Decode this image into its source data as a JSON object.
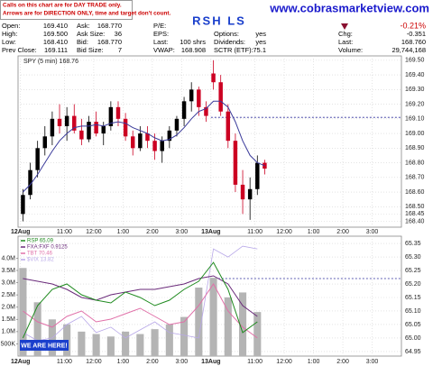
{
  "notice": [
    "Calls on this chart are for DAY TRADE only.",
    "Arrows are for DIRECTION ONLY, time and target don't count."
  ],
  "title": "RSH LS",
  "website": "www.cobrasmarketview.com",
  "quote": {
    "columns": [
      [
        {
          "label": "Open:",
          "value": "169.410"
        },
        {
          "label": "High:",
          "value": "169.500"
        },
        {
          "label": "Low:",
          "value": "168.410"
        },
        {
          "label": "Prev Close:",
          "value": "169.111"
        }
      ],
      [
        {
          "label": "Ask:",
          "value": "168.770"
        },
        {
          "label": "Ask Size:",
          "value": "36"
        },
        {
          "label": "Bid:",
          "value": "168.770"
        },
        {
          "label": "Bid Size:",
          "value": "7"
        }
      ],
      [
        {
          "label": "P/E:"
        },
        {
          "label": "EPS:"
        },
        {
          "label": "Last:",
          "value": "100 shrs"
        },
        {
          "label": "VWAP:",
          "value": "168.908"
        }
      ],
      [
        {
          "label": "Options:",
          "value": "yes"
        },
        {
          "label": "Dividends:",
          "value": "yes"
        },
        {
          "label": "SCTR (ETF):",
          "value": "75.1"
        }
      ],
      [
        {
          "value": "-0.21%",
          "color": "#cc0000"
        },
        {
          "label": "Chg:",
          "value": "-0.351"
        },
        {
          "label": "Last:",
          "value": "168.760"
        },
        {
          "label": "Volume:",
          "value": "29,744,168"
        }
      ]
    ]
  },
  "annotation": "WE ARE HERE!",
  "chart_data": [
    {
      "type": "candlestick",
      "name": "SPY (5 min) 168.76",
      "grid": true,
      "up_color": "#000000",
      "down_color": "#cc0022",
      "reference_line": 169.11,
      "xlim": [
        -1,
        156
      ],
      "xticks": [
        {
          "value": 0,
          "label": "12Aug"
        },
        {
          "value": 18,
          "label": "11:00"
        },
        {
          "value": 30,
          "label": "12:00"
        },
        {
          "value": 42,
          "label": "1:00"
        },
        {
          "value": 54,
          "label": "2:00"
        },
        {
          "value": 66,
          "label": "3:00"
        },
        {
          "value": 78,
          "label": "13Aug"
        },
        {
          "value": 96,
          "label": "11:00"
        },
        {
          "value": 108,
          "label": "12:00"
        },
        {
          "value": 120,
          "label": "1:00"
        },
        {
          "value": 132,
          "label": "2:00"
        },
        {
          "value": 144,
          "label": "3:00"
        }
      ],
      "ylim": [
        168.36,
        169.53
      ],
      "yticks": [
        {
          "value": 168.4,
          "label": "168.40"
        },
        168.45,
        {
          "value": 168.5,
          "label": "168.50"
        },
        {
          "value": 168.6,
          "label": "168.60"
        },
        {
          "value": 168.7,
          "label": "168.70"
        },
        {
          "value": 168.8,
          "label": "168.80"
        },
        {
          "value": 168.9,
          "label": "168.90"
        },
        {
          "value": 169.0,
          "label": "169.00"
        },
        {
          "value": 169.1,
          "label": "169.10"
        },
        {
          "value": 169.2,
          "label": "169.20"
        },
        {
          "value": 169.3,
          "label": "169.30"
        },
        {
          "value": 169.4,
          "label": "169.40"
        },
        {
          "value": 169.5,
          "label": "169.50"
        }
      ],
      "x": [
        1,
        4,
        7,
        10,
        13,
        16,
        19,
        22,
        25,
        28,
        31,
        34,
        37,
        40,
        43,
        46,
        49,
        52,
        55,
        58,
        61,
        64,
        67,
        70,
        73,
        76,
        79,
        82,
        85,
        88,
        91,
        94,
        97,
        100
      ],
      "open": [
        168.45,
        168.58,
        168.75,
        168.9,
        168.98,
        169.1,
        169.05,
        169.12,
        169.02,
        168.96,
        169.08,
        169.0,
        169.05,
        169.18,
        169.1,
        168.98,
        168.9,
        169.0,
        168.95,
        168.88,
        168.95,
        169.02,
        169.1,
        169.22,
        169.3,
        169.18,
        169.41,
        169.35,
        169.15,
        168.95,
        168.65,
        168.55,
        168.62,
        168.8
      ],
      "high": [
        168.62,
        168.8,
        168.95,
        169.05,
        169.15,
        169.2,
        169.18,
        169.2,
        169.1,
        169.12,
        169.15,
        169.08,
        169.22,
        169.22,
        169.14,
        169.02,
        169.05,
        169.05,
        169.0,
        168.98,
        169.05,
        169.12,
        169.25,
        169.35,
        169.32,
        169.22,
        169.5,
        169.4,
        169.2,
        169.0,
        168.75,
        168.7,
        168.85,
        168.82
      ],
      "low": [
        168.4,
        168.55,
        168.7,
        168.85,
        168.92,
        169.0,
        168.95,
        169.0,
        168.92,
        168.94,
        168.98,
        168.92,
        169.02,
        169.05,
        168.95,
        168.85,
        168.88,
        168.9,
        168.82,
        168.8,
        168.9,
        168.98,
        169.05,
        169.15,
        169.12,
        169.08,
        169.3,
        169.12,
        168.9,
        168.6,
        168.45,
        168.41,
        168.58,
        168.72
      ],
      "close": [
        168.58,
        168.75,
        168.9,
        168.98,
        169.1,
        169.05,
        169.12,
        169.02,
        168.96,
        169.08,
        169.0,
        169.05,
        169.18,
        169.1,
        168.98,
        168.9,
        169.0,
        168.95,
        168.88,
        168.95,
        169.02,
        169.1,
        169.22,
        169.3,
        169.18,
        169.12,
        169.35,
        169.15,
        168.95,
        168.65,
        168.55,
        168.62,
        168.8,
        168.76
      ],
      "ma": {
        "color": "#3a3a9a",
        "values": [
          168.6,
          168.65,
          168.72,
          168.8,
          168.88,
          168.95,
          169.0,
          169.04,
          169.05,
          169.05,
          169.06,
          169.05,
          169.07,
          169.08,
          169.07,
          169.04,
          169.02,
          169.0,
          168.97,
          168.95,
          168.96,
          168.99,
          169.04,
          169.1,
          169.15,
          169.17,
          169.22,
          169.22,
          169.18,
          169.08,
          168.95,
          168.85,
          168.8,
          168.78
        ]
      }
    },
    {
      "type": "line",
      "grid": true,
      "reference_line": 65.22,
      "xlim": [
        -1,
        156
      ],
      "xticks": [
        {
          "value": 0,
          "label": "12Aug"
        },
        {
          "value": 18,
          "label": "11:00"
        },
        {
          "value": 30,
          "label": "12:00"
        },
        {
          "value": 42,
          "label": "1:00"
        },
        {
          "value": 54,
          "label": "2:00"
        },
        {
          "value": 66,
          "label": "3:00"
        },
        {
          "value": 78,
          "label": "13Aug"
        },
        {
          "value": 96,
          "label": "11:00"
        },
        {
          "value": 108,
          "label": "12:00"
        },
        {
          "value": 120,
          "label": "1:00"
        },
        {
          "value": 132,
          "label": "2:00"
        },
        {
          "value": 144,
          "label": "3:00"
        }
      ],
      "ylim": [
        64.933,
        65.377
      ],
      "yticks": [
        64.95,
        {
          "value": 65.0,
          "label": "65.00"
        },
        65.05,
        {
          "value": 65.1,
          "label": "65.10"
        },
        65.15,
        {
          "value": 65.2,
          "label": "65.20"
        },
        65.25,
        {
          "value": 65.3,
          "label": "65.30"
        },
        65.35
      ],
      "y2lim": [
        0,
        4900000
      ],
      "y2ticks": [
        {
          "value": 500000,
          "label": "500K"
        },
        {
          "value": 1000000,
          "label": "1.0M"
        },
        {
          "value": 1500000,
          "label": "1.5M"
        },
        {
          "value": 2000000,
          "label": "2.0M"
        },
        {
          "value": 2500000,
          "label": "2.5M"
        },
        {
          "value": 3000000,
          "label": "3.0M"
        },
        {
          "value": 3500000,
          "label": "3.5M"
        },
        {
          "value": 4000000,
          "label": "4.0M"
        }
      ],
      "x": [
        1,
        7,
        13,
        19,
        25,
        31,
        37,
        43,
        49,
        55,
        61,
        67,
        73,
        79,
        85,
        91,
        97
      ],
      "series": [
        {
          "type": "bar",
          "axis": "y2",
          "color": "#b4b4b4",
          "values": [
            3600000,
            2200000,
            1500000,
            1300000,
            1000000,
            900000,
            800000,
            1000000,
            900000,
            1100000,
            1300000,
            1600000,
            2800000,
            3200000,
            2400000,
            2600000,
            1800000
          ]
        },
        {
          "name": "$VIX 13.82",
          "color": "#b8a8e8",
          "values": [
            65.02,
            64.99,
            65.0,
            65.05,
            65.08,
            65.02,
            65.04,
            65.0,
            65.03,
            65.06,
            65.02,
            65.01,
            65.0,
            65.33,
            65.3,
            65.34,
            65.33
          ]
        },
        {
          "name": "TBT 70.46",
          "color": "#e070a8",
          "values": [
            65.1,
            65.06,
            65.04,
            65.08,
            65.1,
            65.06,
            65.07,
            65.09,
            65.11,
            65.08,
            65.05,
            65.06,
            65.12,
            65.2,
            65.1,
            65.04,
            65.0
          ]
        },
        {
          "name": "FXA:FXF 0.9125",
          "color": "#6a2a7a",
          "values": [
            65.22,
            65.21,
            65.2,
            65.18,
            65.15,
            65.14,
            65.16,
            65.17,
            65.18,
            65.18,
            65.19,
            65.2,
            65.22,
            65.23,
            65.2,
            65.12,
            65.08
          ]
        },
        {
          "name": "RSP 65.09",
          "color": "#1f8a1f",
          "values": [
            65.0,
            65.12,
            65.18,
            65.2,
            65.16,
            65.14,
            65.13,
            65.17,
            65.15,
            65.12,
            65.14,
            65.18,
            65.21,
            65.28,
            65.18,
            65.02,
            65.06
          ]
        }
      ]
    }
  ]
}
